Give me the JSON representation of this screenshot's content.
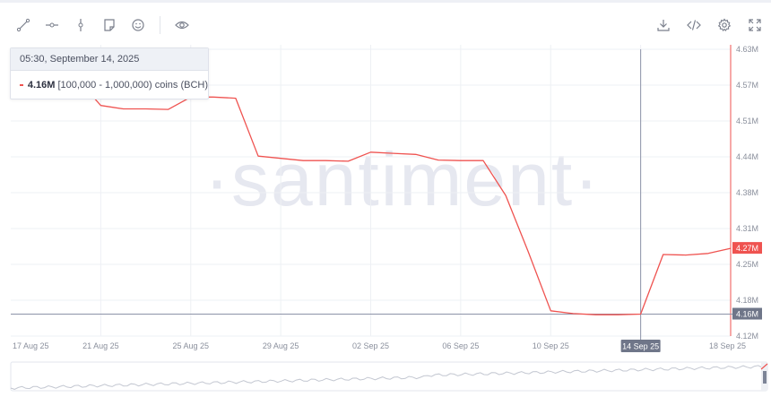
{
  "toolbar": {
    "left_icons": [
      "line-draw-icon",
      "horizontal-line-icon",
      "vertical-line-icon",
      "note-icon",
      "emoji-icon",
      "eye-icon"
    ],
    "right_icons": [
      "download-icon",
      "embed-code-icon",
      "settings-icon",
      "fullscreen-icon"
    ]
  },
  "watermark": "·santiment·",
  "tooltip": {
    "date": "05:30, September 14, 2025",
    "value": "4.16M",
    "metric": "[100,000  - 1,000,000) coins (BCH)",
    "color": "#ef5350"
  },
  "chart_data": {
    "type": "line",
    "x": [
      "2025-08-17",
      "2025-08-18",
      "2025-08-19",
      "2025-08-20",
      "2025-08-21",
      "2025-08-22",
      "2025-08-23",
      "2025-08-24",
      "2025-08-25",
      "2025-08-26",
      "2025-08-27",
      "2025-08-28",
      "2025-08-29",
      "2025-08-30",
      "2025-08-31",
      "2025-09-01",
      "2025-09-02",
      "2025-09-03",
      "2025-09-04",
      "2025-09-05",
      "2025-09-06",
      "2025-09-07",
      "2025-09-08",
      "2025-09-09",
      "2025-09-10",
      "2025-09-11",
      "2025-09-12",
      "2025-09-13",
      "2025-09-14",
      "2025-09-15",
      "2025-09-16",
      "2025-09-17",
      "2025-09-18"
    ],
    "series": [
      {
        "values": [
          4.6,
          4.6,
          4.58,
          4.575,
          4.53,
          4.524,
          4.524,
          4.523,
          4.545,
          4.545,
          4.543,
          4.44,
          4.436,
          4.432,
          4.432,
          4.431,
          4.447,
          4.445,
          4.443,
          4.433,
          4.432,
          4.432,
          4.37,
          4.27,
          4.165,
          4.16,
          4.158,
          4.158,
          4.159,
          4.265,
          4.264,
          4.267,
          4.276
        ],
        "color": "#ef5350"
      }
    ],
    "y_ticks": [
      "4.63M",
      "4.57M",
      "4.51M",
      "4.44M",
      "4.38M",
      "4.31M",
      "4.25M",
      "4.18M",
      "4.12M"
    ],
    "x_ticks": [
      "17 Aug 25",
      "21 Aug 25",
      "25 Aug 25",
      "29 Aug 25",
      "02 Sep 25",
      "06 Sep 25",
      "10 Sep 25",
      "14 Sep 25",
      "18 Sep 25"
    ],
    "ylim": [
      4.12,
      4.63
    ],
    "last_value_label": "4.27M",
    "crosshair_value_label": "4.16M",
    "crosshair_date_label": "14 Sep 25",
    "crosshair_index": 28,
    "grid": true
  }
}
